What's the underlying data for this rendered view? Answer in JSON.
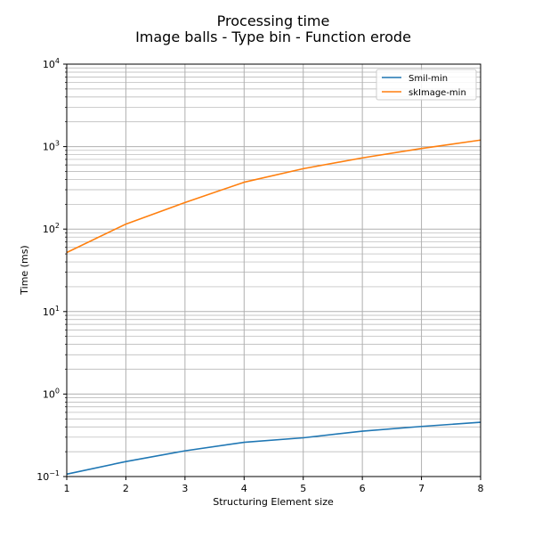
{
  "chart_data": {
    "type": "line",
    "title": "Processing time",
    "subtitle": "Image balls - Type bin - Function erode",
    "xlabel": "Structuring Element size",
    "ylabel": "Time (ms)",
    "x": [
      1,
      2,
      3,
      4,
      5,
      6,
      7,
      8
    ],
    "xlim": [
      1,
      8
    ],
    "x_ticks": [
      1,
      2,
      3,
      4,
      5,
      6,
      7,
      8
    ],
    "y_scale": "log",
    "ylim": [
      0.1,
      10000
    ],
    "y_ticks": [
      {
        "value": 0.1,
        "base": "10",
        "exp": "−1"
      },
      {
        "value": 1,
        "base": "10",
        "exp": "0"
      },
      {
        "value": 10,
        "base": "10",
        "exp": "1"
      },
      {
        "value": 100,
        "base": "10",
        "exp": "2"
      },
      {
        "value": 1000,
        "base": "10",
        "exp": "3"
      },
      {
        "value": 10000,
        "base": "10",
        "exp": "4"
      }
    ],
    "grid": true,
    "legend_position": "top-right",
    "series": [
      {
        "name": "Smil-min",
        "color": "#1f77b4",
        "values": [
          0.107,
          0.152,
          0.205,
          0.26,
          0.295,
          0.355,
          0.405,
          0.455
        ]
      },
      {
        "name": "skImage-min",
        "color": "#ff7f0e",
        "values": [
          52,
          115,
          210,
          370,
          540,
          730,
          950,
          1200
        ]
      }
    ]
  }
}
